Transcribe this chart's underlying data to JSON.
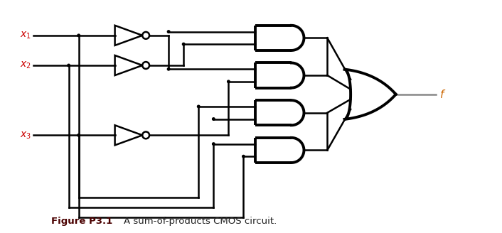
{
  "bg_color": "#ffffff",
  "line_color": "#000000",
  "gray_color": "#888888",
  "x1_color": "#cc0000",
  "x2_color": "#cc0000",
  "x3_color": "#cc0000",
  "f_color": "#cc6600",
  "figure_label": "Figure P3.1",
  "figure_label_color": "#4a0000",
  "figure_desc": "A sum-of-products CMOS circuit.",
  "lw": 1.8,
  "gate_lw": 2.8,
  "dot_r": 0.025
}
